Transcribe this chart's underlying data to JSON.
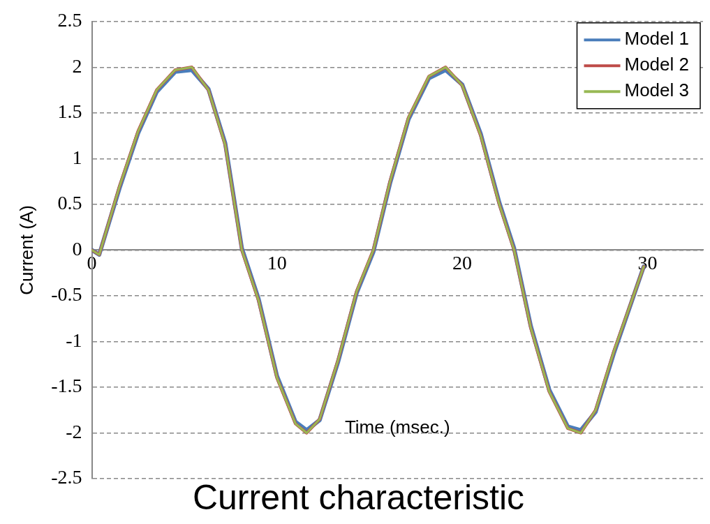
{
  "chart_data": {
    "type": "line",
    "title": "Current characteristic",
    "xlabel": "Time (msec.)",
    "ylabel": "Current (A)",
    "x": [
      0,
      0.4,
      1.5,
      2.5,
      3.5,
      4.5,
      5.4,
      6.3,
      7.2,
      8.1,
      9.0,
      10.0,
      11.0,
      11.6,
      12.3,
      13.3,
      14.3,
      15.2,
      16.1,
      17.1,
      18.2,
      19.1,
      20.0,
      21.0,
      22.0,
      22.8,
      23.7,
      24.7,
      25.7,
      26.4,
      27.2,
      28.2,
      29.8
    ],
    "series": [
      {
        "name": "Model 1",
        "color": "#4a7ebb",
        "values": [
          0,
          -0.05,
          0.68,
          1.28,
          1.73,
          1.95,
          1.97,
          1.76,
          1.17,
          0.02,
          -0.53,
          -1.38,
          -1.88,
          -1.97,
          -1.86,
          -1.22,
          -0.47,
          -0.02,
          0.73,
          1.43,
          1.88,
          1.97,
          1.81,
          1.27,
          0.52,
          0.02,
          -0.83,
          -1.53,
          -1.93,
          -1.97,
          -1.77,
          -1.12,
          -0.18
        ]
      },
      {
        "name": "Model 2",
        "color": "#be4b48",
        "values": [
          0,
          -0.05,
          0.7,
          1.3,
          1.75,
          1.97,
          2.0,
          1.75,
          1.15,
          0,
          -0.55,
          -1.4,
          -1.9,
          -2.0,
          -1.85,
          -1.2,
          -0.45,
          0,
          0.75,
          1.45,
          1.9,
          2.0,
          1.8,
          1.25,
          0.5,
          0,
          -0.85,
          -1.55,
          -1.95,
          -2.0,
          -1.75,
          -1.1,
          -0.18
        ]
      },
      {
        "name": "Model 3",
        "color": "#98b954",
        "values": [
          0,
          -0.05,
          0.7,
          1.3,
          1.75,
          1.97,
          2.0,
          1.75,
          1.15,
          0,
          -0.55,
          -1.4,
          -1.9,
          -2.0,
          -1.85,
          -1.2,
          -0.45,
          0,
          0.75,
          1.45,
          1.9,
          2.0,
          1.8,
          1.25,
          0.5,
          0,
          -0.85,
          -1.55,
          -1.95,
          -2.0,
          -1.75,
          -1.1,
          -0.18
        ]
      }
    ],
    "xlim": [
      0,
      33
    ],
    "xticks": [
      0,
      10,
      20,
      30
    ],
    "ylim": [
      -2.5,
      2.5
    ],
    "yticks": [
      -2.5,
      -2,
      -1.5,
      -1,
      -0.5,
      0,
      0.5,
      1,
      1.5,
      2,
      2.5
    ],
    "grid": "y",
    "line_style": "solid",
    "marker": "none",
    "legend": "top right"
  }
}
